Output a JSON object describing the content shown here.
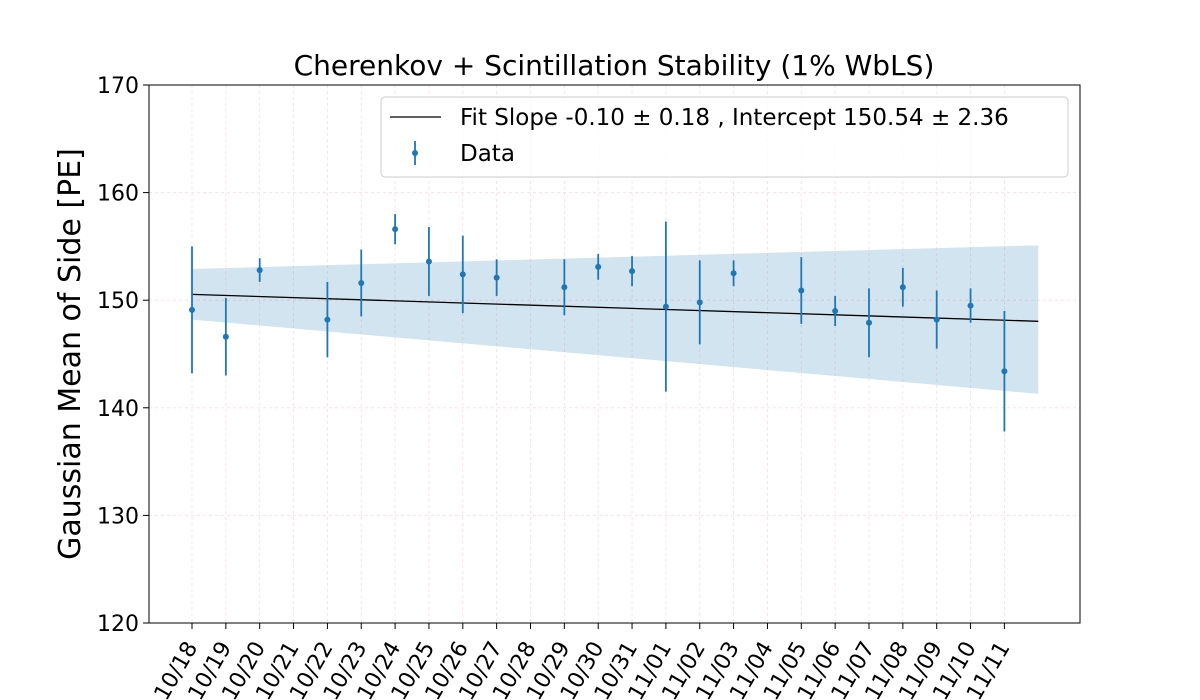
{
  "chart_data": {
    "type": "scatter",
    "title": "Cherenkov + Scintillation Stability (1% WbLS)",
    "xlabel": "",
    "ylabel": "Gaussian Mean of Side [PE]",
    "ylim": [
      120,
      170
    ],
    "yticks": [
      120,
      130,
      140,
      150,
      160,
      170
    ],
    "grid": true,
    "legend_position": "top-right",
    "categories": [
      "10/18",
      "10/19",
      "10/20",
      "10/21",
      "10/22",
      "10/23",
      "10/24",
      "10/25",
      "10/26",
      "10/27",
      "10/28",
      "10/29",
      "10/30",
      "10/31",
      "11/01",
      "11/02",
      "11/03",
      "11/04",
      "11/05",
      "11/06",
      "11/07",
      "11/08",
      "11/09",
      "11/10",
      "11/11"
    ],
    "series": [
      {
        "name": "Data",
        "color": "#1f77b4",
        "points": [
          {
            "x": 0,
            "y": 149.1,
            "err": 5.9
          },
          {
            "x": 1,
            "y": 146.6,
            "err": 3.6
          },
          {
            "x": 2,
            "y": 152.8,
            "err": 1.1
          },
          {
            "x": 4,
            "y": 148.2,
            "err": 3.5
          },
          {
            "x": 5,
            "y": 151.6,
            "err": 3.1
          },
          {
            "x": 6,
            "y": 156.6,
            "err": 1.4
          },
          {
            "x": 7,
            "y": 153.6,
            "err": 3.2
          },
          {
            "x": 8,
            "y": 152.4,
            "err": 3.6
          },
          {
            "x": 9,
            "y": 152.1,
            "err": 1.7
          },
          {
            "x": 11,
            "y": 151.2,
            "err": 2.6
          },
          {
            "x": 12,
            "y": 153.1,
            "err": 1.2
          },
          {
            "x": 13,
            "y": 152.7,
            "err": 1.4
          },
          {
            "x": 14,
            "y": 149.4,
            "err": 7.9
          },
          {
            "x": 15,
            "y": 149.8,
            "err": 3.9
          },
          {
            "x": 16,
            "y": 152.5,
            "err": 1.2
          },
          {
            "x": 18,
            "y": 150.9,
            "err": 3.1
          },
          {
            "x": 19,
            "y": 149.0,
            "err": 1.4
          },
          {
            "x": 20,
            "y": 147.9,
            "err": 3.2
          },
          {
            "x": 21,
            "y": 151.2,
            "err": 1.8
          },
          {
            "x": 22,
            "y": 148.2,
            "err": 2.7
          },
          {
            "x": 23,
            "y": 149.5,
            "err": 1.6
          },
          {
            "x": 24,
            "y": 143.4,
            "err": 5.6
          }
        ]
      },
      {
        "name": "Fit Slope -0.10 ± 0.18 , Intercept 150.54 ± 2.36",
        "color": "#000000",
        "type": "line",
        "slope": -0.1,
        "intercept": 150.54,
        "x_range": [
          0,
          25
        ],
        "band": {
          "color": "#1f77b4",
          "alpha": 0.2,
          "upper": [
            152.9,
            155.1
          ],
          "lower": [
            148.2,
            141.3
          ]
        }
      }
    ],
    "legend": [
      "Fit Slope -0.10 ± 0.18 , Intercept 150.54 ± 2.36",
      "Data"
    ]
  }
}
